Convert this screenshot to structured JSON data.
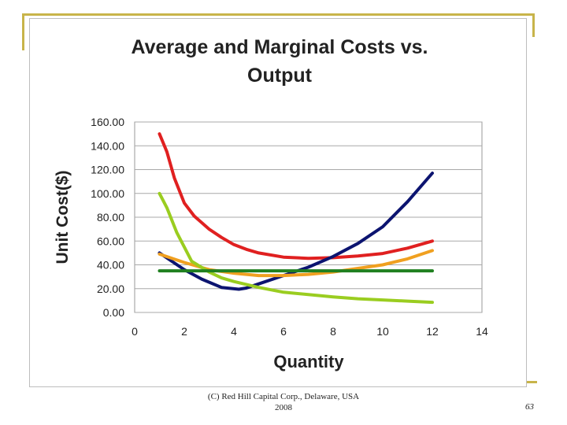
{
  "slide": {
    "footer_line1": "(C) Red Hill Capital Corp., Delaware, USA",
    "footer_line2": "2008",
    "page_number": "63",
    "accent_color": "#c8b44a"
  },
  "chart_data": {
    "type": "line",
    "title_lines": [
      "Average and Marginal Costs vs.",
      "Output"
    ],
    "xlabel": "Quantity",
    "ylabel": "Unit Cost($)",
    "xlim": [
      0,
      14
    ],
    "ylim": [
      0,
      160
    ],
    "x_ticks": [
      0,
      2,
      4,
      6,
      8,
      10,
      12,
      14
    ],
    "y_ticks": [
      "0.00",
      "20.00",
      "40.00",
      "60.00",
      "80.00",
      "100.00",
      "120.00",
      "140.00",
      "160.00"
    ],
    "grid": true,
    "legend": "none",
    "series": [
      {
        "color": "#e02020",
        "x": [
          1,
          1.3,
          1.6,
          2,
          2.4,
          3,
          3.5,
          4,
          4.5,
          5,
          6,
          7,
          8,
          9,
          10,
          11,
          12
        ],
        "values": [
          150,
          135,
          113,
          92,
          81,
          70,
          63,
          57,
          53,
          50,
          46.5,
          45.5,
          46,
          47.5,
          49.5,
          54,
          60
        ]
      },
      {
        "color": "#0c1470",
        "x": [
          1,
          2,
          2.7,
          3.5,
          4.2,
          4.5,
          5,
          6,
          7,
          8,
          9,
          10,
          11,
          12
        ],
        "values": [
          50,
          36,
          28,
          21,
          19.5,
          20.5,
          24,
          31,
          38,
          47,
          58,
          72,
          93,
          117
        ]
      },
      {
        "color": "#f0a020",
        "x": [
          1,
          2,
          3,
          4,
          5,
          6,
          7,
          8,
          9,
          10,
          11,
          12
        ],
        "values": [
          49,
          42,
          36,
          33,
          31,
          31,
          32,
          34,
          37,
          40,
          45,
          52
        ]
      },
      {
        "color": "#9acd20",
        "x": [
          1,
          1.3,
          1.7,
          2,
          2.3,
          3,
          3.5,
          4,
          5,
          6,
          7,
          8,
          9,
          10,
          11,
          12
        ],
        "values": [
          100,
          88,
          67,
          55,
          43,
          34,
          29,
          26,
          21,
          17,
          15,
          13,
          11.5,
          10.5,
          9.5,
          8.5
        ]
      },
      {
        "color": "#208020",
        "x": [
          1,
          12
        ],
        "values": [
          35,
          35
        ]
      }
    ]
  }
}
